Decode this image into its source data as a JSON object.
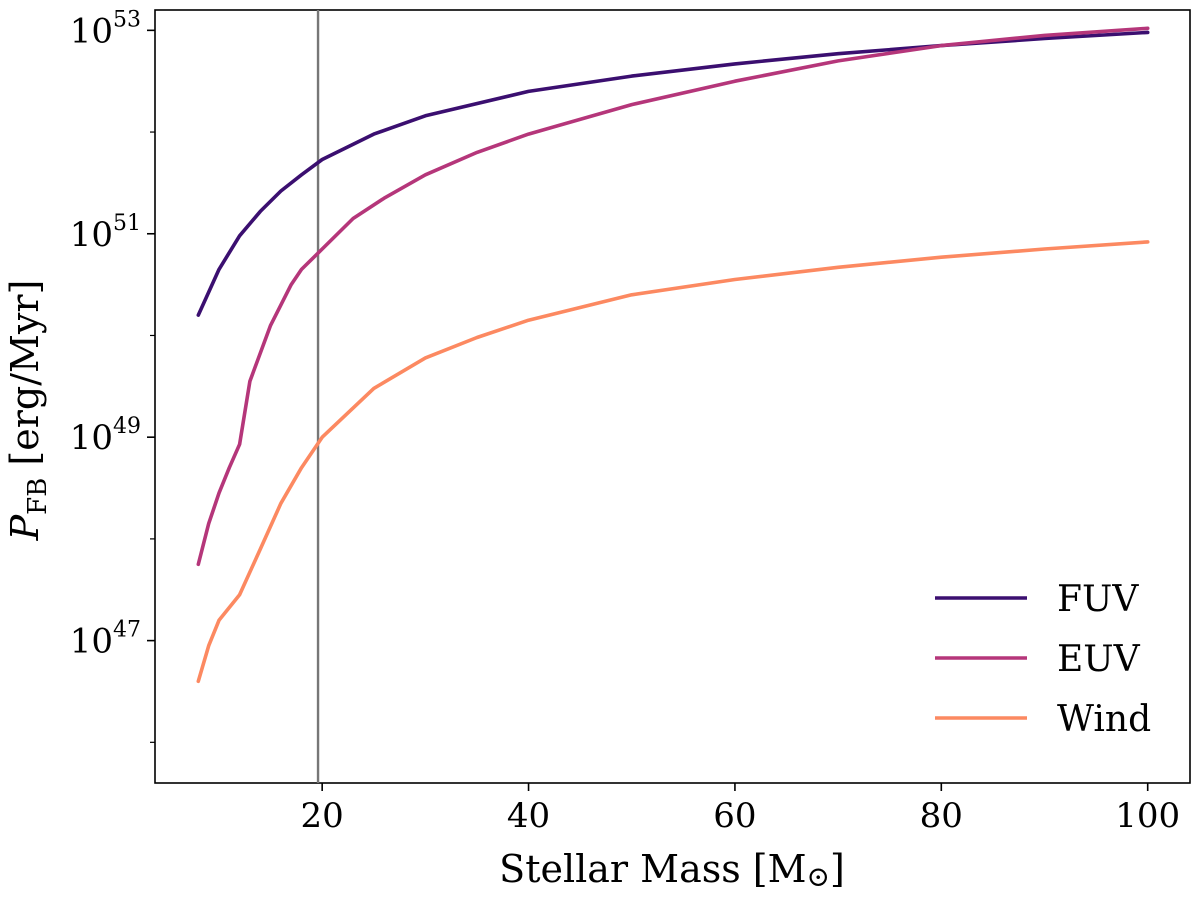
{
  "chart_data": {
    "type": "line",
    "title": "",
    "xlabel": "Stellar Mass [M",
    "xlabel_suffix": "]",
    "xlabel_symbol": "⊙",
    "ylabel_var": "P",
    "ylabel_sub": "FB",
    "ylabel_rest": " [erg/Myr]",
    "xlim": [
      3.8,
      104.1
    ],
    "ylim_log10": [
      45.6,
      53.2
    ],
    "y_scale": "log",
    "x_ticks": [
      20,
      40,
      60,
      80,
      100
    ],
    "x_tick_labels": [
      "20",
      "40",
      "60",
      "80",
      "100"
    ],
    "y_ticks_log10": [
      47,
      49,
      51,
      53
    ],
    "y_tick_base": "10",
    "y_tick_exponents": [
      "47",
      "49",
      "51",
      "53"
    ],
    "vline_x": 19.6,
    "grid": false,
    "legend_position": "lower-right",
    "series": [
      {
        "name": "FUV",
        "color": "#3b0f70",
        "x": [
          8,
          10,
          12,
          14,
          16,
          18,
          20,
          25,
          30,
          40,
          50,
          60,
          70,
          80,
          90,
          100
        ],
        "y_log10": [
          50.2,
          50.65,
          50.98,
          51.22,
          51.42,
          51.58,
          51.73,
          51.98,
          52.16,
          52.4,
          52.55,
          52.67,
          52.77,
          52.85,
          52.92,
          52.98
        ]
      },
      {
        "name": "EUV",
        "color": "#b5367a",
        "x": [
          8,
          9,
          10,
          11,
          12,
          13,
          15,
          17,
          18,
          20,
          23,
          26,
          30,
          35,
          40,
          50,
          60,
          70,
          80,
          90,
          100
        ],
        "y_log10": [
          47.75,
          48.15,
          48.45,
          48.7,
          48.93,
          49.55,
          50.1,
          50.5,
          50.65,
          50.85,
          51.15,
          51.35,
          51.58,
          51.8,
          51.98,
          52.27,
          52.5,
          52.7,
          52.85,
          52.95,
          53.02
        ]
      },
      {
        "name": "Wind",
        "color": "#fc8961",
        "x": [
          8,
          9,
          10,
          12,
          14,
          16,
          18,
          20,
          25,
          30,
          35,
          40,
          50,
          60,
          70,
          80,
          90,
          100
        ],
        "y_log10": [
          46.6,
          46.95,
          47.2,
          47.45,
          47.9,
          48.35,
          48.7,
          49.0,
          49.48,
          49.78,
          49.98,
          50.15,
          50.4,
          50.55,
          50.67,
          50.77,
          50.85,
          50.92
        ]
      }
    ]
  }
}
